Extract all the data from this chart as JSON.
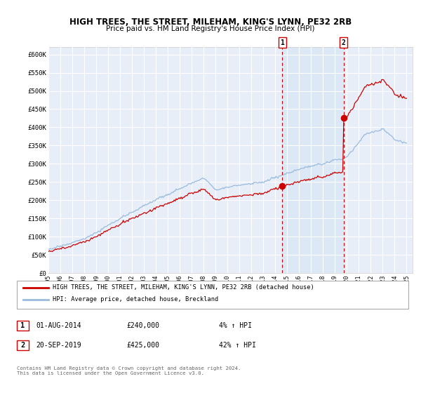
{
  "title": "HIGH TREES, THE STREET, MILEHAM, KING'S LYNN, PE32 2RB",
  "subtitle": "Price paid vs. HM Land Registry's House Price Index (HPI)",
  "ylabel_ticks": [
    "£0",
    "£50K",
    "£100K",
    "£150K",
    "£200K",
    "£250K",
    "£300K",
    "£350K",
    "£400K",
    "£450K",
    "£500K",
    "£550K",
    "£600K"
  ],
  "ytick_values": [
    0,
    50000,
    100000,
    150000,
    200000,
    250000,
    300000,
    350000,
    400000,
    450000,
    500000,
    550000,
    600000
  ],
  "ylim": [
    0,
    620000
  ],
  "background_color": "#ffffff",
  "plot_bg_color": "#e8eef8",
  "grid_color": "#ffffff",
  "shade_color": "#dce8f5",
  "legend_label_red": "HIGH TREES, THE STREET, MILEHAM, KING'S LYNN, PE32 2RB (detached house)",
  "legend_label_blue": "HPI: Average price, detached house, Breckland",
  "sale1_date": "01-AUG-2014",
  "sale1_price": "£240,000",
  "sale1_hpi": "4% ↑ HPI",
  "sale1_year": 2014.58,
  "sale1_value": 240000,
  "sale2_date": "20-SEP-2019",
  "sale2_price": "£425,000",
  "sale2_hpi": "42% ↑ HPI",
  "sale2_year": 2019.72,
  "sale2_value": 425000,
  "footer": "Contains HM Land Registry data © Crown copyright and database right 2024.\nThis data is licensed under the Open Government Licence v3.0.",
  "red_color": "#cc0000",
  "blue_color": "#99bbdd",
  "dashed_color": "#cc0000"
}
